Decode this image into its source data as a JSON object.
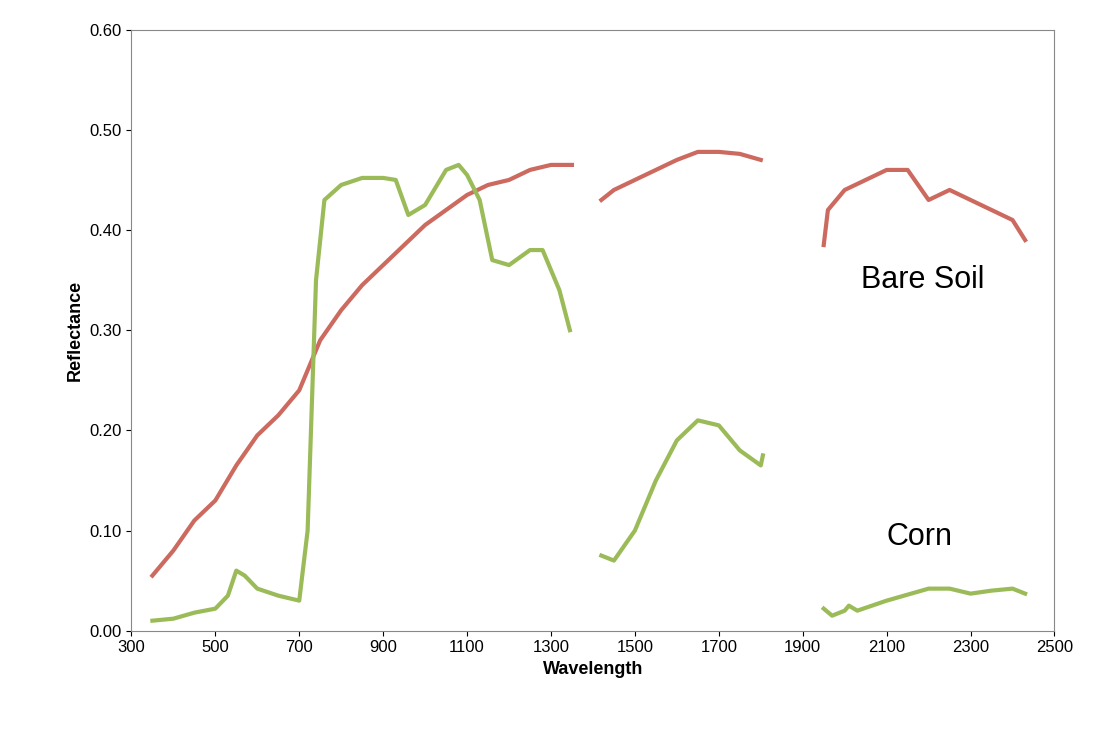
{
  "chart_data": {
    "type": "line",
    "x_label": "Wavelength",
    "y_label": "Reflectance",
    "xlim": [
      300,
      2500
    ],
    "xticks": [
      300,
      500,
      700,
      900,
      1100,
      1300,
      1500,
      1700,
      1900,
      2100,
      2300,
      2500
    ],
    "ylim": [
      0,
      0.6
    ],
    "yticks": [
      {
        "value": 0,
        "label": "0.00"
      },
      {
        "value": 0.1,
        "label": "0.10"
      },
      {
        "value": 0.2,
        "label": "0.20"
      },
      {
        "value": 0.3,
        "label": "0.30"
      },
      {
        "value": 0.4,
        "label": "0.40"
      },
      {
        "value": 0.5,
        "label": "0.50"
      },
      {
        "value": 0.6,
        "label": "0.60"
      }
    ],
    "grid": false,
    "annotations": [
      {
        "text": "Bare Soil",
        "x": 2040,
        "y": 0.35
      },
      {
        "text": "Corn",
        "x": 2100,
        "y": 0.094
      }
    ],
    "series": [
      {
        "name": "Bare Soil",
        "color": "#cd6a5f",
        "x": [
          350,
          400,
          450,
          500,
          550,
          600,
          650,
          700,
          750,
          800,
          850,
          900,
          950,
          1000,
          1050,
          1100,
          1150,
          1200,
          1250,
          1300,
          1350,
          1400,
          1420,
          1450,
          1500,
          1550,
          1600,
          1650,
          1700,
          1750,
          1800,
          1850,
          1950,
          1960,
          2000,
          2050,
          2100,
          2150,
          2200,
          2250,
          2300,
          2350,
          2400,
          2430
        ],
        "values": [
          0.055,
          0.08,
          0.11,
          0.13,
          0.165,
          0.195,
          0.215,
          0.24,
          0.29,
          0.32,
          0.345,
          0.365,
          0.385,
          0.405,
          0.42,
          0.435,
          0.445,
          0.45,
          0.46,
          0.465,
          0.465,
          null,
          0.43,
          0.44,
          0.45,
          0.46,
          0.47,
          0.478,
          0.478,
          0.476,
          0.47,
          null,
          0.385,
          0.42,
          0.44,
          0.45,
          0.46,
          0.46,
          0.43,
          0.44,
          0.43,
          0.42,
          0.41,
          0.39
        ]
      },
      {
        "name": "Corn",
        "color": "#9bbb59",
        "x": [
          350,
          400,
          450,
          500,
          530,
          550,
          570,
          600,
          650,
          700,
          720,
          740,
          760,
          800,
          850,
          900,
          930,
          960,
          1000,
          1050,
          1080,
          1100,
          1130,
          1160,
          1200,
          1250,
          1280,
          1320,
          1345,
          1400,
          1420,
          1450,
          1500,
          1550,
          1600,
          1650,
          1700,
          1750,
          1800,
          1805,
          1850,
          1950,
          1970,
          2000,
          2010,
          2030,
          2100,
          2200,
          2250,
          2300,
          2350,
          2400,
          2430
        ],
        "values": [
          0.01,
          0.012,
          0.018,
          0.022,
          0.035,
          0.06,
          0.055,
          0.042,
          0.035,
          0.03,
          0.1,
          0.35,
          0.43,
          0.445,
          0.452,
          0.452,
          0.45,
          0.415,
          0.425,
          0.46,
          0.465,
          0.455,
          0.43,
          0.37,
          0.365,
          0.38,
          0.38,
          0.34,
          0.3,
          null,
          0.075,
          0.07,
          0.1,
          0.15,
          0.19,
          0.21,
          0.205,
          0.18,
          0.165,
          0.175,
          null,
          0.022,
          0.015,
          0.02,
          0.025,
          0.02,
          0.03,
          0.042,
          0.042,
          0.037,
          0.04,
          0.042,
          0.037
        ]
      }
    ]
  }
}
